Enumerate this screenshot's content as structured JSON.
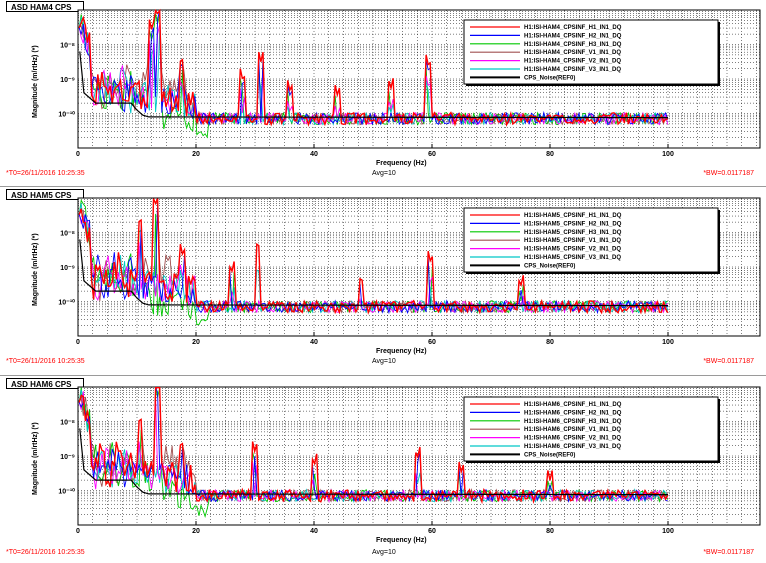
{
  "chart_data": [
    {
      "type": "line",
      "title": "ASD HAM4 CPS",
      "xlabel": "Frequency (Hz)",
      "ylabel": "Magnitude (m/rtHz) (*)",
      "xlim": [
        0,
        100
      ],
      "ylim_log": [
        -11,
        -7
      ],
      "x_scale": "linear",
      "y_scale": "log",
      "x_ticks": [
        "0",
        "20",
        "40",
        "60",
        "80",
        "100"
      ],
      "y_ticks": [
        "10⁻⁸",
        "10⁻⁹",
        "10⁻¹⁰"
      ],
      "grid": true,
      "legend_position": "top-right",
      "series": [
        {
          "name": "H1:ISI-HAM4_CPSINF_H1_IN1_DQ",
          "color": "#ff0000"
        },
        {
          "name": "H1:ISI-HAM4_CPSINF_H2_IN1_DQ",
          "color": "#0000ff"
        },
        {
          "name": "H1:ISI-HAM4_CPSINF_H3_IN1_DQ",
          "color": "#00c800"
        },
        {
          "name": "H1:ISI-HAM4_CPSINF_V1_IN1_DQ",
          "color": "#a05050"
        },
        {
          "name": "H1:ISI-HAM4_CPSINF_V2_IN1_DQ",
          "color": "#ff00ff"
        },
        {
          "name": "H1:ISI-HAM4_CPSINF_V3_IN1_DQ",
          "color": "#00c8c8"
        },
        {
          "name": "CPS_Noise(REF0)",
          "color": "#000000"
        }
      ],
      "footer": {
        "t0": "*T0=26/11/2016 10:25:35",
        "avg": "Avg=10",
        "bw": "*BW=0.0117187"
      }
    },
    {
      "type": "line",
      "title": "ASD HAM5 CPS",
      "xlabel": "Frequency (Hz)",
      "ylabel": "Magnitude (m/rtHz) (*)",
      "xlim": [
        0,
        100
      ],
      "ylim_log": [
        -11,
        -7
      ],
      "x_scale": "linear",
      "y_scale": "log",
      "x_ticks": [
        "0",
        "20",
        "40",
        "60",
        "80",
        "100"
      ],
      "y_ticks": [
        "10⁻⁸",
        "10⁻⁹",
        "10⁻¹⁰"
      ],
      "grid": true,
      "legend_position": "top-right",
      "series": [
        {
          "name": "H1:ISI-HAM5_CPSINF_H1_IN1_DQ",
          "color": "#ff0000"
        },
        {
          "name": "H1:ISI-HAM5_CPSINF_H2_IN1_DQ",
          "color": "#0000ff"
        },
        {
          "name": "H1:ISI-HAM5_CPSINF_H3_IN1_DQ",
          "color": "#00c800"
        },
        {
          "name": "H1:ISI-HAM5_CPSINF_V1_IN1_DQ",
          "color": "#a05050"
        },
        {
          "name": "H1:ISI-HAM5_CPSINF_V2_IN1_DQ",
          "color": "#ff00ff"
        },
        {
          "name": "H1:ISI-HAM5_CPSINF_V3_IN1_DQ",
          "color": "#00c8c8"
        },
        {
          "name": "CPS_Noise(REF0)",
          "color": "#000000"
        }
      ],
      "footer": {
        "t0": "*T0=26/11/2016 10:25:35",
        "avg": "Avg=10",
        "bw": "*BW=0.0117187"
      }
    },
    {
      "type": "line",
      "title": "ASD HAM6 CPS",
      "xlabel": "Frequency (Hz)",
      "ylabel": "Magnitude (m/rtHz) (*)",
      "xlim": [
        0,
        100
      ],
      "ylim_log": [
        -11,
        -7
      ],
      "x_scale": "linear",
      "y_scale": "log",
      "x_ticks": [
        "0",
        "20",
        "40",
        "60",
        "80",
        "100"
      ],
      "y_ticks": [
        "10⁻⁸",
        "10⁻⁹",
        "10⁻¹⁰"
      ],
      "grid": true,
      "legend_position": "top-right",
      "series": [
        {
          "name": "H1:ISI-HAM6_CPSINF_H1_IN1_DQ",
          "color": "#ff0000"
        },
        {
          "name": "H1:ISI-HAM6_CPSINF_H2_IN1_DQ",
          "color": "#0000ff"
        },
        {
          "name": "H1:ISI-HAM6_CPSINF_H3_IN1_DQ",
          "color": "#00c800"
        },
        {
          "name": "H1:ISI-HAM6_CPSINF_V1_IN1_DQ",
          "color": "#a05050"
        },
        {
          "name": "H1:ISI-HAM6_CPSINF_V2_IN1_DQ",
          "color": "#ff00ff"
        },
        {
          "name": "H1:ISI-HAM6_CPSINF_V3_IN1_DQ",
          "color": "#00c8c8"
        },
        {
          "name": "CPS_Noise(REF0)",
          "color": "#000000"
        }
      ],
      "footer": {
        "t0": "*T0=26/11/2016 10:25:35",
        "avg": "Avg=10",
        "bw": "*BW=0.0117187"
      }
    }
  ]
}
